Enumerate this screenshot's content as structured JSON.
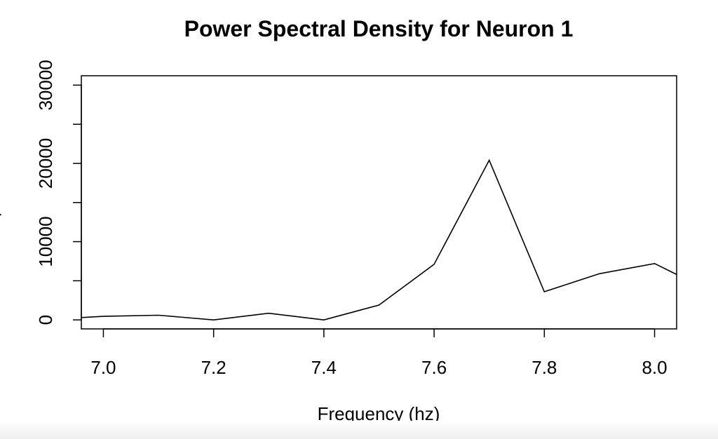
{
  "chart_data": {
    "type": "line",
    "title": "Power Spectral Density for Neuron 1",
    "xlabel": "Frequency (hz)",
    "ylabel": "psd",
    "xlim": [
      6.96,
      8.04
    ],
    "ylim": [
      -1150,
      31200
    ],
    "x_ticks": [
      "7.0",
      "7.2",
      "7.4",
      "7.6",
      "7.8",
      "8.0"
    ],
    "y_ticks": [
      "0",
      "10000",
      "20000",
      "30000"
    ],
    "grid": false,
    "legend": "none",
    "line_color": "#000000",
    "x": [
      6.96,
      7.0,
      7.1,
      7.2,
      7.3,
      7.4,
      7.5,
      7.6,
      7.7,
      7.8,
      7.9,
      8.0,
      8.04
    ],
    "y": [
      300,
      450,
      600,
      0,
      850,
      0,
      1900,
      7100,
      20400,
      3600,
      5900,
      7200,
      5800
    ]
  }
}
